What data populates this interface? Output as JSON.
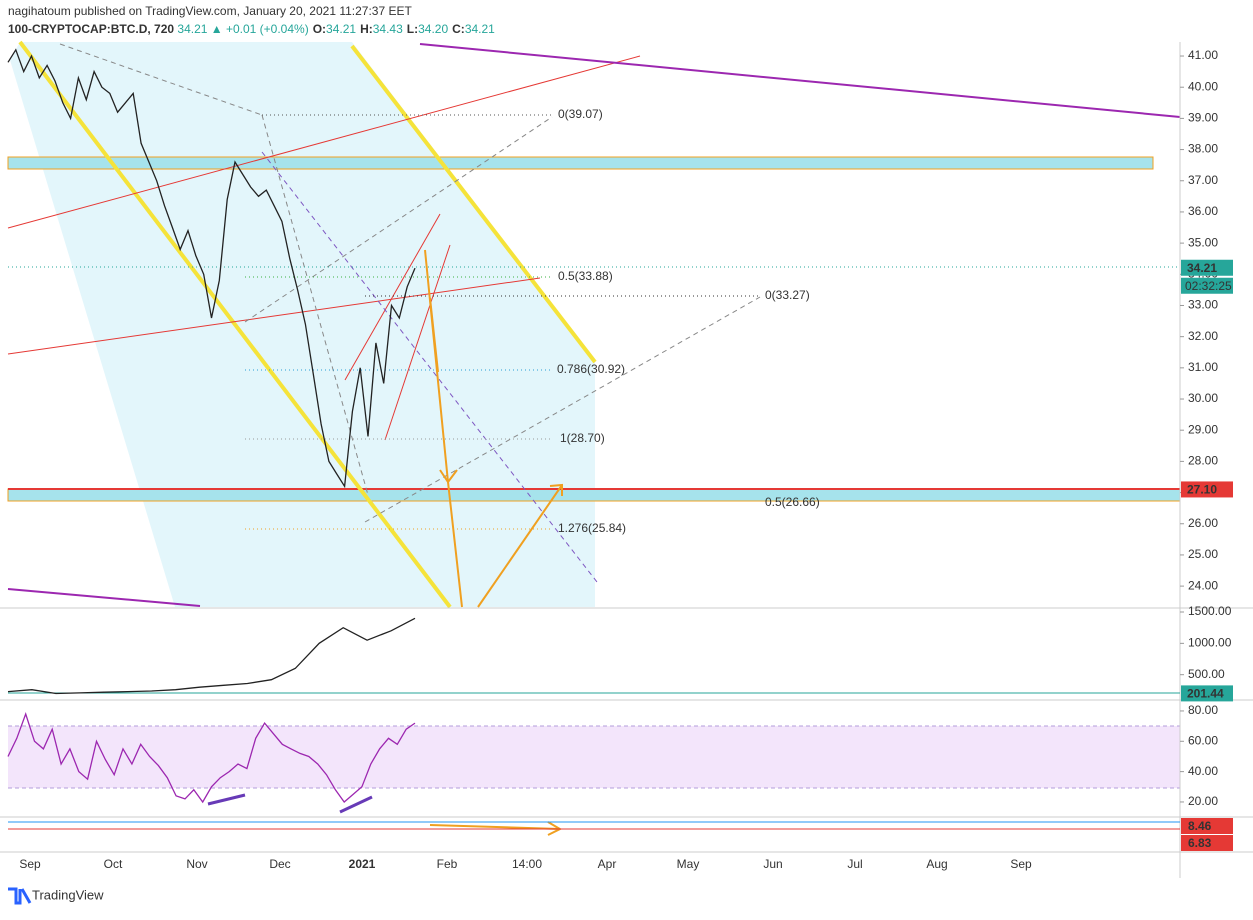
{
  "header": {
    "publisher": "nagihatoum published on TradingView.com, January 20, 2021 11:27:37 EET",
    "symbol": "100-CRYPTOCAP:BTC.D, 720",
    "last": "34.21",
    "change": "▲ +0.01 (+0.04%)",
    "ohlc": [
      {
        "label": "O:",
        "value": "34.21"
      },
      {
        "label": "H:",
        "value": "34.43"
      },
      {
        "label": "L:",
        "value": "34.20"
      },
      {
        "label": "C:",
        "value": "34.21"
      }
    ]
  },
  "chart_data": [
    {
      "type": "line",
      "series": [
        {
          "name": "BTC.D",
          "color": "#222222",
          "values": [
            40.8,
            41.2,
            40.5,
            41.0,
            40.3,
            40.7,
            40.2,
            39.5,
            39.0,
            40.3,
            39.6,
            40.5,
            40.0,
            39.8,
            39.2,
            39.5,
            39.8,
            38.2,
            37.6,
            37.0,
            36.2,
            35.5,
            34.8,
            35.4,
            34.6,
            34.0,
            32.6,
            33.8,
            36.4,
            37.6,
            37.2,
            36.8,
            36.5,
            36.7,
            36.2,
            35.7,
            34.5,
            33.5,
            32.4,
            30.8,
            29.2,
            28.0,
            27.6,
            27.2,
            29.6,
            31.0,
            28.8,
            31.8,
            30.5,
            33.0,
            32.6,
            33.6,
            34.2
          ]
        }
      ],
      "ylim": [
        23.33,
        41.45
      ],
      "yticks": [
        {
          "value": 24,
          "label": "24.00"
        },
        {
          "value": 25,
          "label": "25.00"
        },
        {
          "value": 26,
          "label": "26.00"
        },
        {
          "value": 27,
          "label": "27.00"
        },
        {
          "value": 28,
          "label": "28.00"
        },
        {
          "value": 29,
          "label": "29.00"
        },
        {
          "value": 30,
          "label": "30.00"
        },
        {
          "value": 31,
          "label": "31.00"
        },
        {
          "value": 32,
          "label": "32.00"
        },
        {
          "value": 33,
          "label": "33.00"
        },
        {
          "value": 34,
          "label": "34.00"
        },
        {
          "value": 35,
          "label": "35.00"
        },
        {
          "value": 36,
          "label": "36.00"
        },
        {
          "value": 37,
          "label": "37.00"
        },
        {
          "value": 38,
          "label": "38.00"
        },
        {
          "value": 39,
          "label": "39.00"
        },
        {
          "value": 40,
          "label": "40.00"
        },
        {
          "value": 41,
          "label": "41.00"
        }
      ],
      "last_price": 34.21,
      "countdown": "02:32:25",
      "level_price": {
        "value": 27.1,
        "label": "27.10"
      },
      "annotations": [
        {
          "text": "0(39.07)",
          "color": "#555555"
        },
        {
          "text": "0.5(33.88)",
          "color": "#3cb043"
        },
        {
          "text": "0.786(30.92)",
          "color": "#2a9fd6"
        },
        {
          "text": "1(28.70)",
          "color": "#777777"
        },
        {
          "text": "1.276(25.84)",
          "color": "#f0a020"
        },
        {
          "text": "0(33.27)",
          "color": "#333333"
        },
        {
          "text": "0.5(26.66)",
          "color": "#3cb043"
        }
      ]
    },
    {
      "type": "line",
      "series": [
        {
          "name": "Volume",
          "color": "#222222",
          "values": [
            230,
            260,
            200,
            210,
            220,
            230,
            240,
            260,
            300,
            330,
            360,
            420,
            600,
            1000,
            1250,
            1050,
            1200,
            1400
          ]
        }
      ],
      "ylim": [
        144,
        1532
      ],
      "yticks": [
        {
          "value": 500,
          "label": "500.00"
        },
        {
          "value": 1000,
          "label": "1000.00"
        },
        {
          "value": 1500,
          "label": "1500.00"
        }
      ],
      "last_price": 201.44
    },
    {
      "type": "line",
      "series": [
        {
          "name": "RSI",
          "color": "#9c27b0",
          "values": [
            50,
            62,
            78,
            60,
            55,
            68,
            45,
            55,
            40,
            35,
            60,
            48,
            38,
            55,
            45,
            58,
            50,
            44,
            36,
            24,
            22,
            28,
            20,
            30,
            36,
            40,
            45,
            42,
            62,
            72,
            65,
            58,
            55,
            52,
            50,
            45,
            38,
            28,
            20,
            25,
            30,
            45,
            55,
            62,
            58,
            68,
            72
          ]
        }
      ],
      "ylim": [
        11.4,
        85.9
      ],
      "yticks": [
        {
          "value": 20,
          "label": "20.00"
        },
        {
          "value": 40,
          "label": "40.00"
        },
        {
          "value": 60,
          "label": "60.00"
        },
        {
          "value": 80,
          "label": "80.00"
        }
      ]
    },
    {
      "type": "tags",
      "tags": [
        8.46,
        6.83
      ]
    }
  ],
  "time_labels": [
    "Sep",
    "Oct",
    "Nov",
    "Dec",
    "2021",
    "Feb",
    "14:00",
    "Apr",
    "May",
    "Jun",
    "Jul",
    "Aug",
    "Sep"
  ],
  "footer": "TradingView"
}
